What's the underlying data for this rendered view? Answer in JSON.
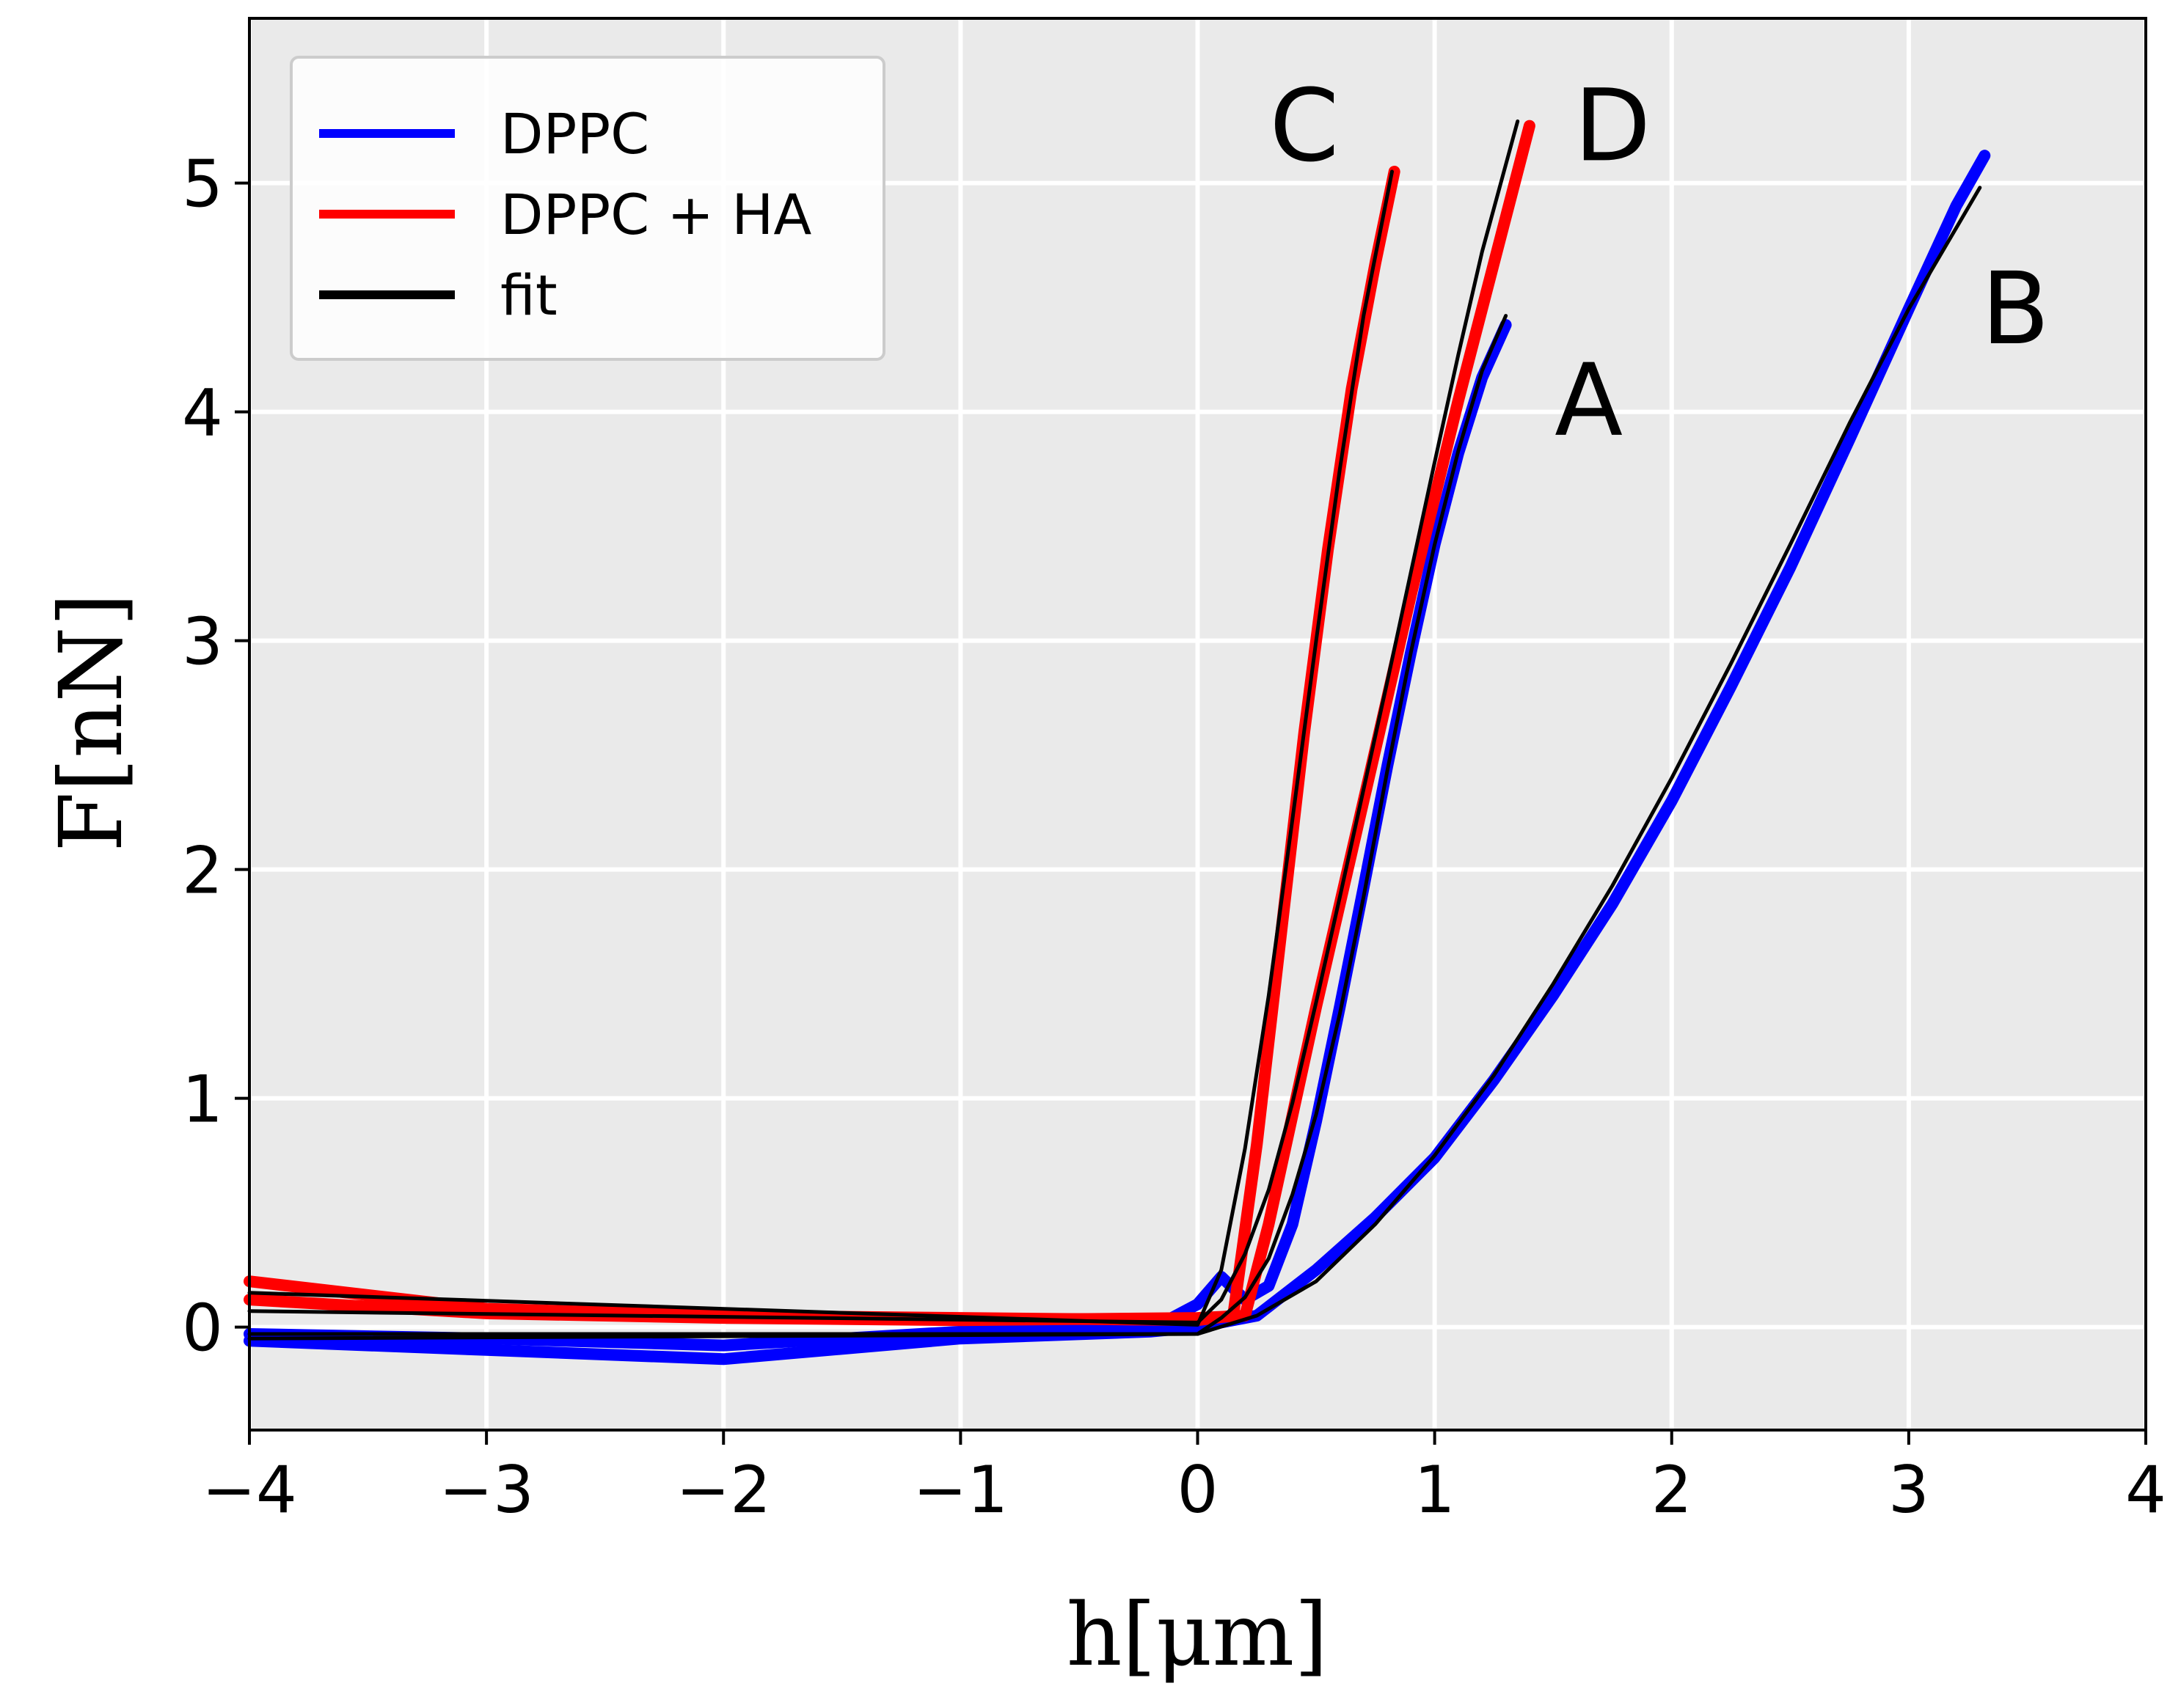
{
  "chart_data": {
    "type": "line",
    "title": "",
    "xlabel": "h[μm]",
    "ylabel": "F[nN]",
    "xlim": [
      -4,
      4
    ],
    "ylim": [
      -0.45,
      5.72
    ],
    "xticks": [
      -4,
      -3,
      -2,
      -1,
      0,
      1,
      2,
      3,
      4
    ],
    "yticks": [
      0,
      1,
      2,
      3,
      4,
      5
    ],
    "xtick_labels": [
      "−4",
      "−3",
      "−2",
      "−1",
      "0",
      "1",
      "2",
      "3",
      "4"
    ],
    "ytick_labels": [
      "0",
      "1",
      "2",
      "3",
      "4",
      "5"
    ],
    "grid": true,
    "legend_position": "top-left",
    "legend": [
      {
        "label": "DPPC",
        "color": "#0000ff"
      },
      {
        "label": "DPPC + HA",
        "color": "#ff0000"
      },
      {
        "label": "fit",
        "color": "#000000"
      }
    ],
    "annotations": [
      {
        "text": "C",
        "x": 0.45,
        "y": 5.1
      },
      {
        "text": "D",
        "x": 1.75,
        "y": 5.1
      },
      {
        "text": "B",
        "x": 3.45,
        "y": 4.3
      },
      {
        "text": "A",
        "x": 1.65,
        "y": 3.9
      }
    ],
    "series": [
      {
        "name": "A",
        "group": "DPPC",
        "color": "#0000ff",
        "points": [
          [
            -4,
            -0.03
          ],
          [
            -3,
            -0.05
          ],
          [
            -2,
            -0.08
          ],
          [
            -1,
            -0.02
          ],
          [
            -0.2,
            -0.01
          ],
          [
            0,
            0.1
          ],
          [
            0.1,
            0.22
          ],
          [
            0.2,
            0.12
          ],
          [
            0.3,
            0.18
          ],
          [
            0.4,
            0.45
          ],
          [
            0.5,
            0.9
          ],
          [
            0.6,
            1.4
          ],
          [
            0.7,
            1.92
          ],
          [
            0.8,
            2.45
          ],
          [
            0.9,
            2.95
          ],
          [
            1.0,
            3.42
          ],
          [
            1.1,
            3.82
          ],
          [
            1.2,
            4.15
          ],
          [
            1.3,
            4.38
          ]
        ],
        "fit": [
          [
            -4,
            -0.03
          ],
          [
            0,
            -0.03
          ],
          [
            0.1,
            0.04
          ],
          [
            0.2,
            0.13
          ],
          [
            0.3,
            0.3
          ],
          [
            0.4,
            0.58
          ],
          [
            0.5,
            0.93
          ],
          [
            0.6,
            1.37
          ],
          [
            0.7,
            1.88
          ],
          [
            0.8,
            2.43
          ],
          [
            0.9,
            2.95
          ],
          [
            1.0,
            3.42
          ],
          [
            1.1,
            3.83
          ],
          [
            1.2,
            4.18
          ],
          [
            1.3,
            4.42
          ]
        ]
      },
      {
        "name": "B",
        "group": "DPPC",
        "color": "#0000ff",
        "points": [
          [
            -4,
            -0.06
          ],
          [
            -3,
            -0.1
          ],
          [
            -2,
            -0.14
          ],
          [
            -1,
            -0.05
          ],
          [
            -0.2,
            -0.02
          ],
          [
            0,
            0.0
          ],
          [
            0.25,
            0.05
          ],
          [
            0.5,
            0.25
          ],
          [
            0.75,
            0.48
          ],
          [
            1.0,
            0.74
          ],
          [
            1.25,
            1.08
          ],
          [
            1.5,
            1.45
          ],
          [
            1.75,
            1.85
          ],
          [
            2.0,
            2.3
          ],
          [
            2.25,
            2.8
          ],
          [
            2.5,
            3.32
          ],
          [
            2.75,
            3.88
          ],
          [
            3.0,
            4.45
          ],
          [
            3.2,
            4.9
          ],
          [
            3.32,
            5.12
          ]
        ],
        "fit": [
          [
            -4,
            -0.05
          ],
          [
            0,
            -0.03
          ],
          [
            0.25,
            0.05
          ],
          [
            0.5,
            0.2
          ],
          [
            0.75,
            0.45
          ],
          [
            1.0,
            0.75
          ],
          [
            1.25,
            1.1
          ],
          [
            1.5,
            1.5
          ],
          [
            1.75,
            1.93
          ],
          [
            2.0,
            2.4
          ],
          [
            2.25,
            2.9
          ],
          [
            2.5,
            3.42
          ],
          [
            2.75,
            3.95
          ],
          [
            3.0,
            4.45
          ],
          [
            3.3,
            4.98
          ]
        ]
      },
      {
        "name": "C",
        "group": "DPPC + HA",
        "color": "#ff0000",
        "points": [
          [
            -4,
            0.2
          ],
          [
            -3,
            0.08
          ],
          [
            -2,
            0.05
          ],
          [
            -1,
            0.04
          ],
          [
            0,
            0.03
          ],
          [
            0.15,
            0.05
          ],
          [
            0.25,
            0.8
          ],
          [
            0.35,
            1.7
          ],
          [
            0.45,
            2.6
          ],
          [
            0.55,
            3.4
          ],
          [
            0.65,
            4.1
          ],
          [
            0.75,
            4.65
          ],
          [
            0.83,
            5.05
          ]
        ],
        "fit": [
          [
            -4,
            0.15
          ],
          [
            0,
            0.01
          ],
          [
            0.1,
            0.25
          ],
          [
            0.2,
            0.78
          ],
          [
            0.3,
            1.45
          ],
          [
            0.4,
            2.22
          ],
          [
            0.5,
            3.0
          ],
          [
            0.6,
            3.75
          ],
          [
            0.7,
            4.42
          ],
          [
            0.82,
            5.05
          ]
        ]
      },
      {
        "name": "D",
        "group": "DPPC + HA",
        "color": "#ff0000",
        "points": [
          [
            -4,
            0.12
          ],
          [
            -3,
            0.06
          ],
          [
            -2,
            0.04
          ],
          [
            -1,
            0.03
          ],
          [
            0,
            0.04
          ],
          [
            0.2,
            0.05
          ],
          [
            0.3,
            0.45
          ],
          [
            0.5,
            1.4
          ],
          [
            0.7,
            2.3
          ],
          [
            0.9,
            3.2
          ],
          [
            1.1,
            4.05
          ],
          [
            1.25,
            4.65
          ],
          [
            1.4,
            5.25
          ]
        ],
        "fit": [
          [
            -4,
            0.07
          ],
          [
            0,
            0.02
          ],
          [
            0.1,
            0.12
          ],
          [
            0.2,
            0.32
          ],
          [
            0.3,
            0.6
          ],
          [
            0.4,
            0.98
          ],
          [
            0.5,
            1.42
          ],
          [
            0.6,
            1.88
          ],
          [
            0.7,
            2.35
          ],
          [
            0.8,
            2.82
          ],
          [
            0.9,
            3.3
          ],
          [
            1.0,
            3.78
          ],
          [
            1.1,
            4.25
          ],
          [
            1.2,
            4.7
          ],
          [
            1.35,
            5.27
          ]
        ]
      }
    ]
  }
}
